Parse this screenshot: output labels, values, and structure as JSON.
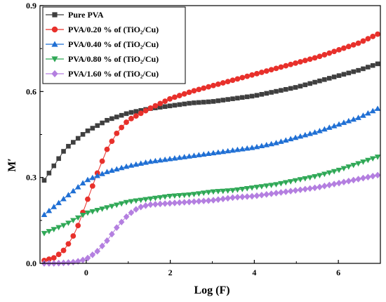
{
  "chart_data": {
    "type": "line",
    "title": "",
    "xlabel": "Log (F)",
    "ylabel": "M′",
    "xlim": [
      -1.1,
      7.0
    ],
    "ylim": [
      0.0,
      0.9
    ],
    "xticks": [
      0,
      2,
      4,
      6
    ],
    "yticks": [
      0.0,
      0.3,
      0.6,
      0.9
    ],
    "xtick_labels": [
      "0",
      "2",
      "4",
      "6"
    ],
    "ytick_labels": [
      "0.0",
      "0.3",
      "0.6",
      "0.9"
    ],
    "grid": false,
    "legend_position": "top-left",
    "series": [
      {
        "name": "Pure PVA",
        "color": "#3f3f3f",
        "marker": "square",
        "x": [
          -1.0,
          -0.5,
          0.0,
          0.5,
          1.0,
          1.5,
          2.0,
          2.5,
          3.0,
          3.5,
          4.0,
          4.5,
          5.0,
          5.5,
          6.0,
          6.5,
          7.0
        ],
        "y": [
          0.29,
          0.4,
          0.46,
          0.5,
          0.525,
          0.54,
          0.55,
          0.56,
          0.565,
          0.575,
          0.585,
          0.6,
          0.615,
          0.635,
          0.655,
          0.675,
          0.7
        ]
      },
      {
        "name": "PVA/0.20 % of (TiO₂/Cu)",
        "color": "#e8302b",
        "marker": "circle",
        "x": [
          -1.0,
          -0.75,
          -0.5,
          -0.25,
          0.0,
          0.25,
          0.5,
          0.75,
          1.0,
          1.5,
          2.0,
          2.5,
          3.0,
          3.5,
          4.0,
          4.5,
          5.0,
          5.5,
          6.0,
          6.5,
          7.0
        ],
        "y": [
          0.01,
          0.02,
          0.05,
          0.11,
          0.21,
          0.31,
          0.4,
          0.46,
          0.5,
          0.54,
          0.575,
          0.6,
          0.62,
          0.64,
          0.66,
          0.68,
          0.7,
          0.72,
          0.745,
          0.77,
          0.805
        ]
      },
      {
        "name": "PVA/0.40 % of (TiO₂/Cu)",
        "color": "#1f6fd4",
        "marker": "triangle-up",
        "x": [
          -1.0,
          -0.5,
          0.0,
          0.5,
          1.0,
          1.5,
          2.0,
          2.5,
          3.0,
          3.5,
          4.0,
          4.5,
          5.0,
          5.5,
          6.0,
          6.5,
          7.0
        ],
        "y": [
          0.17,
          0.23,
          0.29,
          0.32,
          0.34,
          0.355,
          0.365,
          0.375,
          0.385,
          0.395,
          0.405,
          0.42,
          0.44,
          0.46,
          0.485,
          0.51,
          0.545
        ]
      },
      {
        "name": "PVA/0.80 % of (TiO₂/Cu)",
        "color": "#2fa856",
        "marker": "triangle-down",
        "x": [
          -1.0,
          -0.5,
          0.0,
          0.5,
          1.0,
          1.5,
          2.0,
          2.5,
          3.0,
          3.5,
          4.0,
          4.5,
          5.0,
          5.5,
          6.0,
          6.5,
          7.0
        ],
        "y": [
          0.105,
          0.135,
          0.175,
          0.195,
          0.215,
          0.225,
          0.235,
          0.24,
          0.25,
          0.255,
          0.265,
          0.275,
          0.29,
          0.305,
          0.325,
          0.35,
          0.375
        ]
      },
      {
        "name": "PVA/1.60 % of (TiO₂/Cu)",
        "color": "#b47fe0",
        "marker": "diamond",
        "x": [
          -1.0,
          -0.75,
          -0.5,
          -0.25,
          0.0,
          0.25,
          0.5,
          0.75,
          1.0,
          1.25,
          1.5,
          2.0,
          2.5,
          3.0,
          3.5,
          4.0,
          4.5,
          5.0,
          5.5,
          6.0,
          6.5,
          7.0
        ],
        "y": [
          0.0,
          0.0,
          0.002,
          0.005,
          0.015,
          0.04,
          0.08,
          0.13,
          0.17,
          0.195,
          0.205,
          0.21,
          0.215,
          0.22,
          0.23,
          0.235,
          0.245,
          0.255,
          0.265,
          0.28,
          0.295,
          0.31
        ]
      }
    ]
  }
}
